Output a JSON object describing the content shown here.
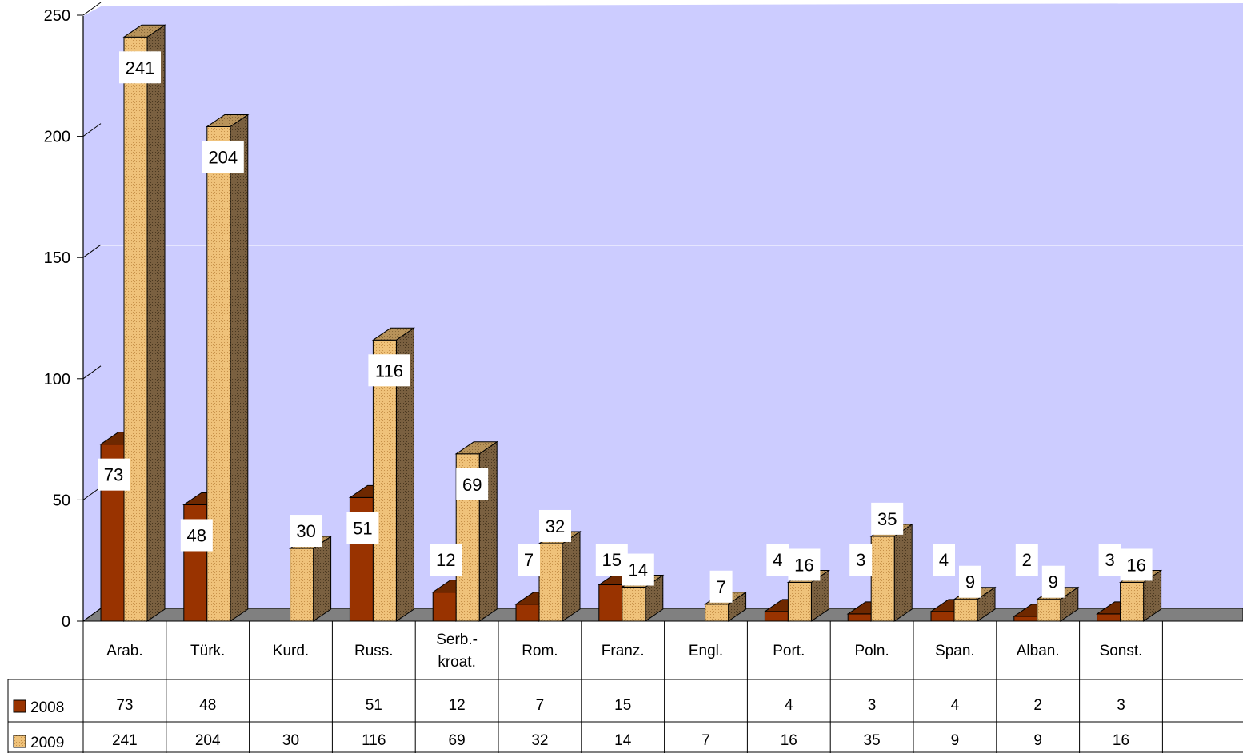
{
  "chart_data": {
    "type": "bar",
    "categories": [
      [
        "Arab."
      ],
      [
        "Türk."
      ],
      [
        "Kurd."
      ],
      [
        "Russ."
      ],
      [
        "Serb.-",
        "kroat."
      ],
      [
        "Rom."
      ],
      [
        "Franz."
      ],
      [
        "Engl."
      ],
      [
        "Port."
      ],
      [
        "Poln."
      ],
      [
        "Span."
      ],
      [
        "Alban."
      ],
      [
        "Sonst."
      ]
    ],
    "series": [
      {
        "name": "2008",
        "values": [
          73,
          48,
          null,
          51,
          12,
          7,
          15,
          null,
          4,
          3,
          4,
          2,
          3
        ],
        "color": "#993300"
      },
      {
        "name": "2009",
        "values": [
          241,
          204,
          30,
          116,
          69,
          32,
          14,
          7,
          16,
          35,
          9,
          9,
          16
        ],
        "color": "#e8b866"
      }
    ],
    "yticks": [
      0,
      50,
      100,
      150,
      200,
      250
    ],
    "ylim": [
      0,
      250
    ],
    "grid": false,
    "legend": "data-table",
    "plot_background": "#ccccff",
    "floor_color": "#808080"
  }
}
